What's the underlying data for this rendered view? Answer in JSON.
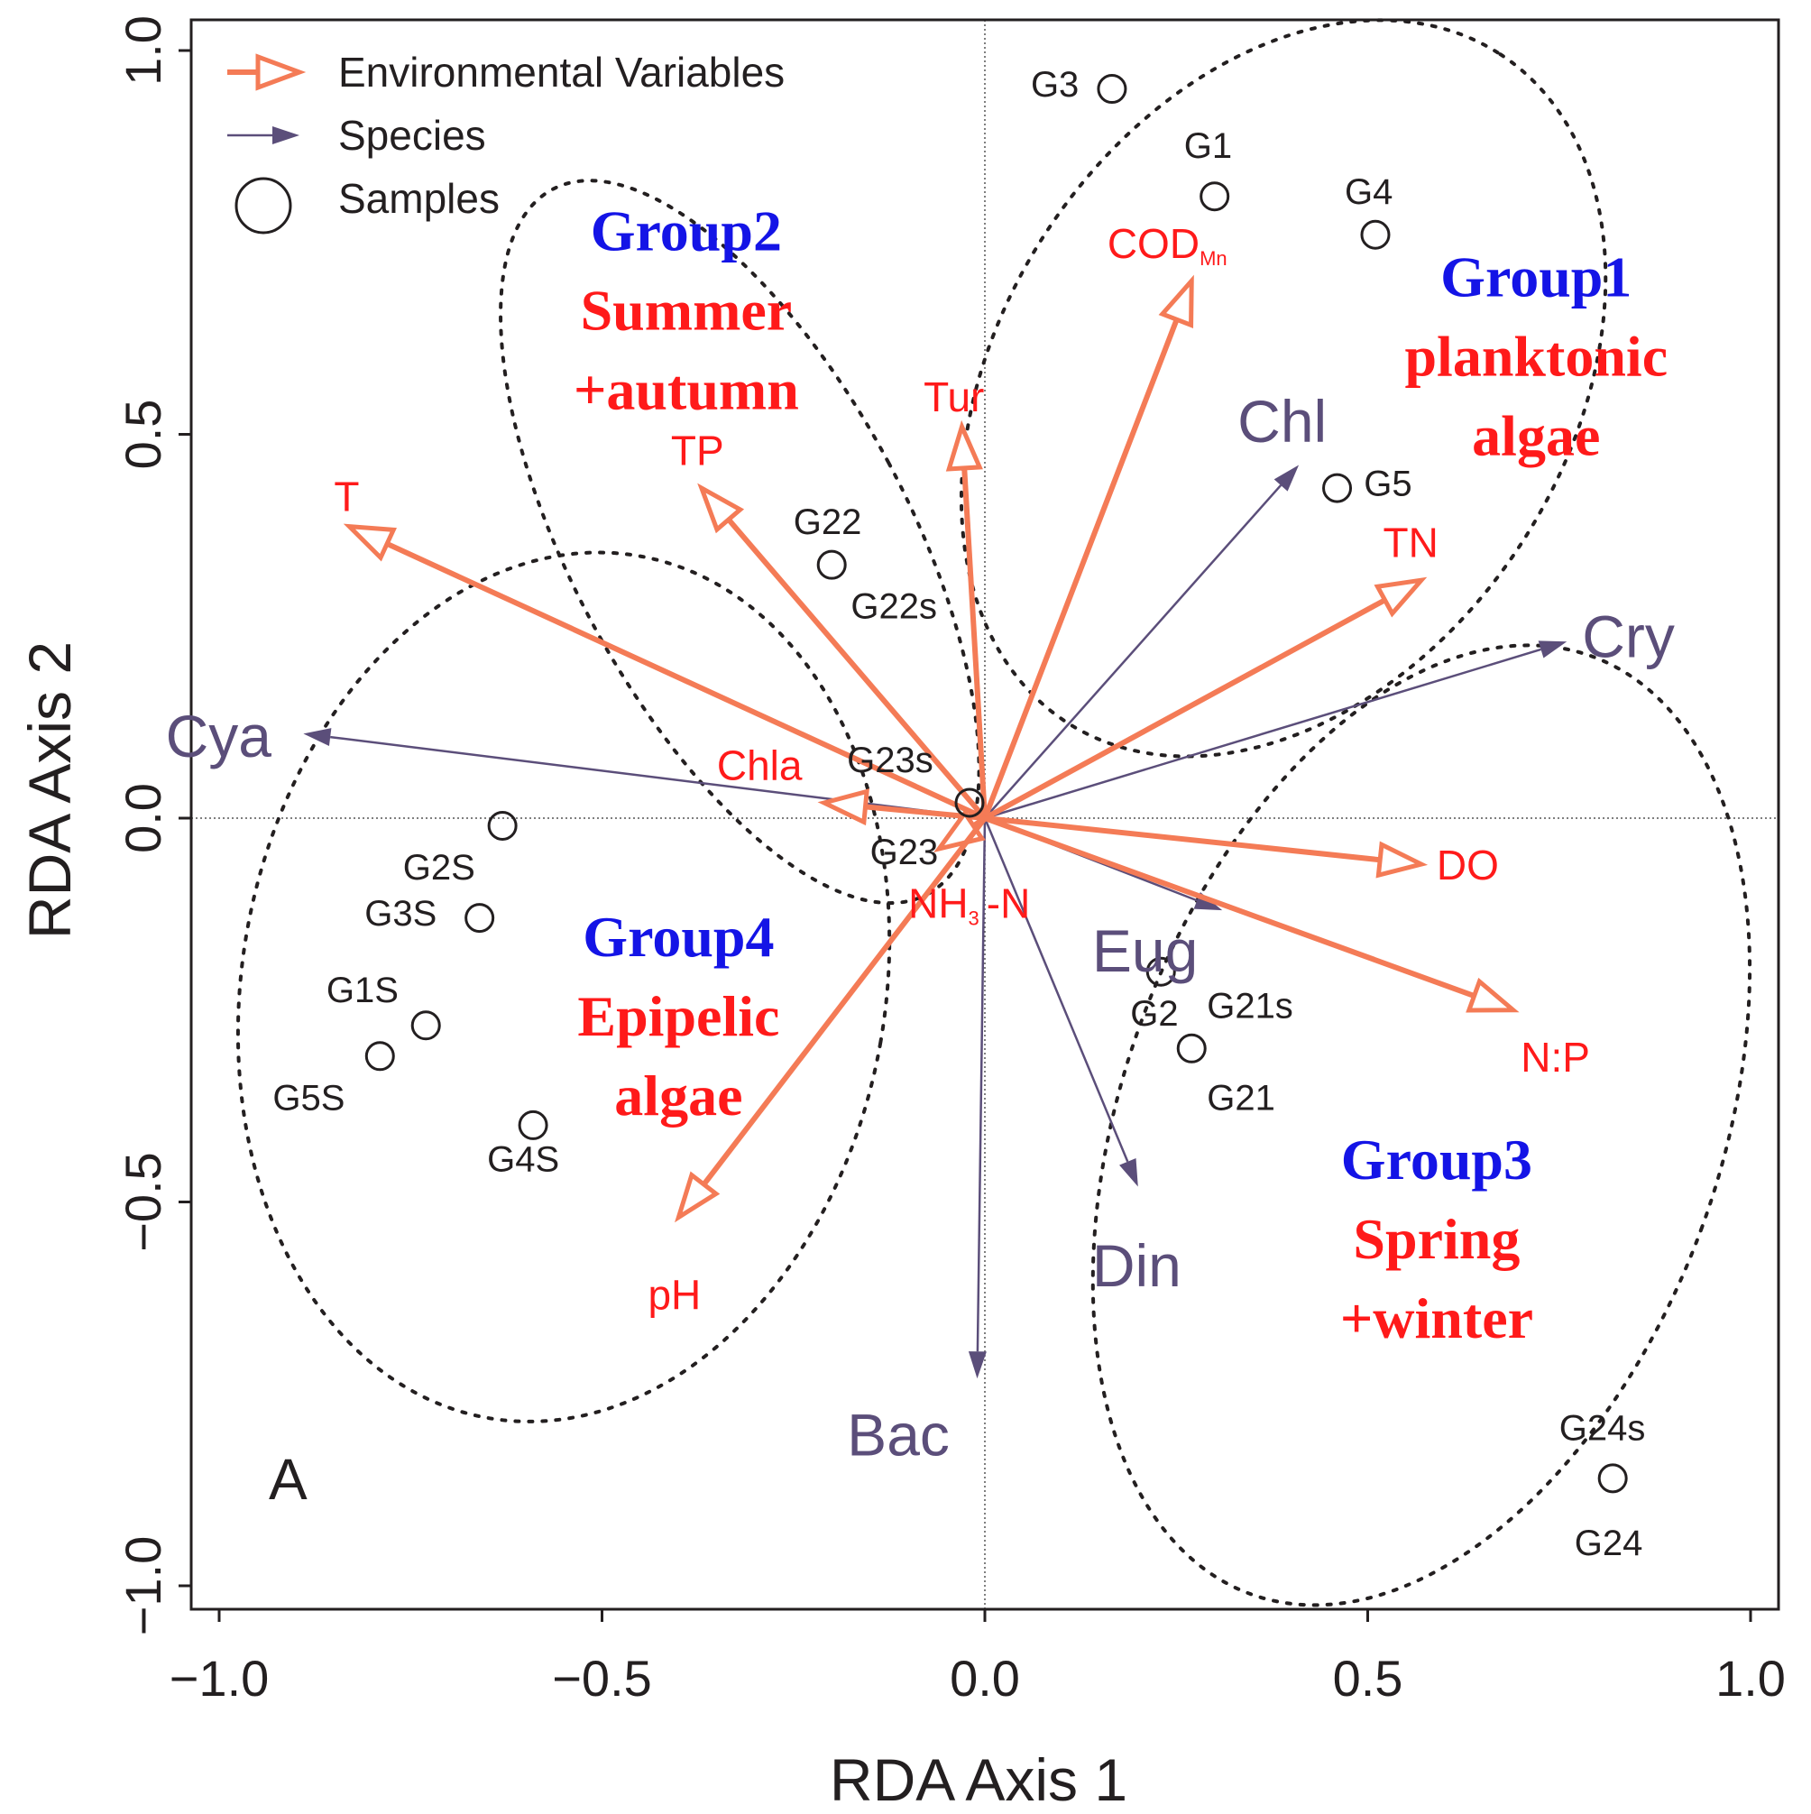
{
  "chart_data": {
    "type": "scatter",
    "panel_label": "A",
    "xlabel": "RDA Axis 1",
    "ylabel": "RDA Axis 2",
    "xlim": [
      -1.05,
      1.03
    ],
    "ylim": [
      -1.03,
      1.07
    ],
    "xticks": [
      {
        "v": -1.0,
        "label": "−1.0"
      },
      {
        "v": -0.5,
        "label": "−0.5"
      },
      {
        "v": 0.0,
        "label": "0.0"
      },
      {
        "v": 0.5,
        "label": "0.5"
      },
      {
        "v": 1.0,
        "label": "1.0"
      }
    ],
    "yticks": [
      {
        "v": -1.0,
        "label": "−1.0"
      },
      {
        "v": -0.5,
        "label": "−0.5"
      },
      {
        "v": 0.0,
        "label": "0.0"
      },
      {
        "v": 0.5,
        "label": "0.5"
      },
      {
        "v": 1.0,
        "label": "1.0"
      }
    ],
    "legend": {
      "position": "top-left",
      "items": [
        {
          "kind": "env",
          "label": "Environmental Variables"
        },
        {
          "kind": "species",
          "label": "Species"
        },
        {
          "kind": "sample",
          "label": "Samples"
        }
      ]
    },
    "colors": {
      "env": "#f47b56",
      "env_label": "#ff1a1a",
      "species": "#5b4e7a",
      "sample": "#231f20",
      "group_title": "#1414e6",
      "group_desc": "#ff1a1a"
    },
    "environmental_variables": [
      {
        "name": "COD",
        "subscript": "Mn",
        "x": 0.27,
        "y": 0.7,
        "lx": 0.16,
        "ly": 0.73,
        "anchor": "start"
      },
      {
        "name": "Tur",
        "x": -0.03,
        "y": 0.51,
        "lx": -0.08,
        "ly": 0.53,
        "anchor": "start"
      },
      {
        "name": "TP",
        "x": -0.37,
        "y": 0.43,
        "lx": -0.41,
        "ly": 0.46,
        "anchor": "start"
      },
      {
        "name": "T",
        "x": -0.83,
        "y": 0.38,
        "lx": -0.85,
        "ly": 0.4,
        "anchor": "start"
      },
      {
        "name": "TN",
        "x": 0.57,
        "y": 0.31,
        "lx": 0.52,
        "ly": 0.34,
        "anchor": "start"
      },
      {
        "name": "Chla",
        "x": -0.21,
        "y": 0.02,
        "lx": -0.35,
        "ly": 0.05,
        "anchor": "start"
      },
      {
        "name": "DO",
        "x": 0.57,
        "y": -0.06,
        "lx": 0.59,
        "ly": -0.08,
        "anchor": "start"
      },
      {
        "name": "NH",
        "subscript": "3",
        "suffix": "-N",
        "x": -0.06,
        "y": -0.04,
        "lx": -0.1,
        "ly": -0.13,
        "anchor": "start"
      },
      {
        "name": "N:P",
        "x": 0.69,
        "y": -0.25,
        "lx": 0.7,
        "ly": -0.33,
        "anchor": "start"
      },
      {
        "name": "pH",
        "x": -0.4,
        "y": -0.52,
        "lx": -0.44,
        "ly": -0.64,
        "anchor": "start"
      }
    ],
    "species": [
      {
        "name": "Chl",
        "x": 0.41,
        "y": 0.46,
        "lx": 0.33,
        "ly": 0.49,
        "anchor": "start"
      },
      {
        "name": "Cry",
        "x": 0.76,
        "y": 0.23,
        "lx": 0.78,
        "ly": 0.21,
        "anchor": "start"
      },
      {
        "name": "Cya",
        "x": -0.89,
        "y": 0.11,
        "lx": -1.07,
        "ly": 0.08,
        "anchor": "start"
      },
      {
        "name": "Eug",
        "x": 0.31,
        "y": -0.12,
        "lx": 0.14,
        "ly": -0.2,
        "anchor": "start"
      },
      {
        "name": "Din",
        "x": 0.2,
        "y": -0.48,
        "lx": 0.14,
        "ly": -0.61,
        "anchor": "start"
      },
      {
        "name": "Bac",
        "x": -0.01,
        "y": -0.73,
        "lx": -0.18,
        "ly": -0.83,
        "anchor": "start"
      }
    ],
    "samples": [
      {
        "name": "G3",
        "x": 0.166,
        "y": 0.95,
        "lx": 0.06,
        "ly": 0.94,
        "anchor": "start"
      },
      {
        "name": "G1",
        "x": 0.3,
        "y": 0.81,
        "lx": 0.26,
        "ly": 0.86,
        "anchor": "start"
      },
      {
        "name": "G4",
        "x": 0.51,
        "y": 0.76,
        "lx": 0.47,
        "ly": 0.8,
        "anchor": "start"
      },
      {
        "name": "G5",
        "x": 0.46,
        "y": 0.43,
        "lx": 0.495,
        "ly": 0.42,
        "anchor": "start"
      },
      {
        "name": "G22",
        "x": -0.2,
        "y": 0.33,
        "lx": -0.25,
        "ly": 0.37,
        "anchor": "start"
      },
      {
        "name": "G22s",
        "x": -0.2,
        "y": 0.33,
        "lx": -0.175,
        "ly": 0.26,
        "anchor": "start"
      },
      {
        "name": "G23s",
        "x": -0.02,
        "y": 0.02,
        "lx": -0.18,
        "ly": 0.06,
        "anchor": "start"
      },
      {
        "name": "G23",
        "x": -0.02,
        "y": 0.02,
        "lx": -0.15,
        "ly": -0.06,
        "anchor": "start"
      },
      {
        "name": "G2S",
        "x": -0.63,
        "y": -0.01,
        "lx": -0.76,
        "ly": -0.08,
        "anchor": "start"
      },
      {
        "name": "G3S",
        "x": -0.66,
        "y": -0.13,
        "lx": -0.81,
        "ly": -0.14,
        "anchor": "start"
      },
      {
        "name": "G1S",
        "x": -0.73,
        "y": -0.27,
        "lx": -0.86,
        "ly": -0.24,
        "anchor": "start"
      },
      {
        "name": "G5S",
        "x": -0.79,
        "y": -0.31,
        "lx": -0.93,
        "ly": -0.38,
        "anchor": "start"
      },
      {
        "name": "G4S",
        "x": -0.59,
        "y": -0.4,
        "lx": -0.65,
        "ly": -0.46,
        "anchor": "start"
      },
      {
        "name": "G2",
        "x": 0.23,
        "y": -0.2,
        "lx": 0.19,
        "ly": -0.27,
        "anchor": "start"
      },
      {
        "name": "G21s",
        "x": 0.27,
        "y": -0.3,
        "lx": 0.29,
        "ly": -0.26,
        "anchor": "start"
      },
      {
        "name": "G21",
        "x": 0.27,
        "y": -0.3,
        "lx": 0.29,
        "ly": -0.38,
        "anchor": "start"
      },
      {
        "name": "G24s",
        "x": 0.82,
        "y": -0.86,
        "lx": 0.75,
        "ly": -0.81,
        "anchor": "start"
      },
      {
        "name": "G24",
        "x": 0.82,
        "y": -0.86,
        "lx": 0.77,
        "ly": -0.96,
        "anchor": "start"
      }
    ],
    "group_ellipses": [
      {
        "cx": 0.39,
        "cy": 0.56,
        "rx": 0.52,
        "ry": 0.37,
        "angle": -57
      },
      {
        "cx": -0.32,
        "cy": 0.36,
        "rx": 0.22,
        "ry": 0.52,
        "angle": -28
      },
      {
        "cx": 0.57,
        "cy": -0.4,
        "rx": 0.39,
        "ry": 0.65,
        "angle": 20
      },
      {
        "cx": -0.55,
        "cy": -0.22,
        "rx": 0.42,
        "ry": 0.57,
        "angle": 10
      }
    ],
    "group_labels": [
      {
        "title": "Group1",
        "lines": [
          "planktonic",
          "algae"
        ],
        "x": 0.72,
        "y": 0.68
      },
      {
        "title": "Group2",
        "lines": [
          "Summer",
          "+autumn"
        ],
        "x": -0.39,
        "y": 0.74
      },
      {
        "title": "Group3",
        "lines": [
          "Spring",
          "+winter"
        ],
        "x": 0.59,
        "y": -0.47
      },
      {
        "title": "Group4",
        "lines": [
          "Epipelic",
          "algae"
        ],
        "x": -0.4,
        "y": -0.18
      }
    ]
  }
}
